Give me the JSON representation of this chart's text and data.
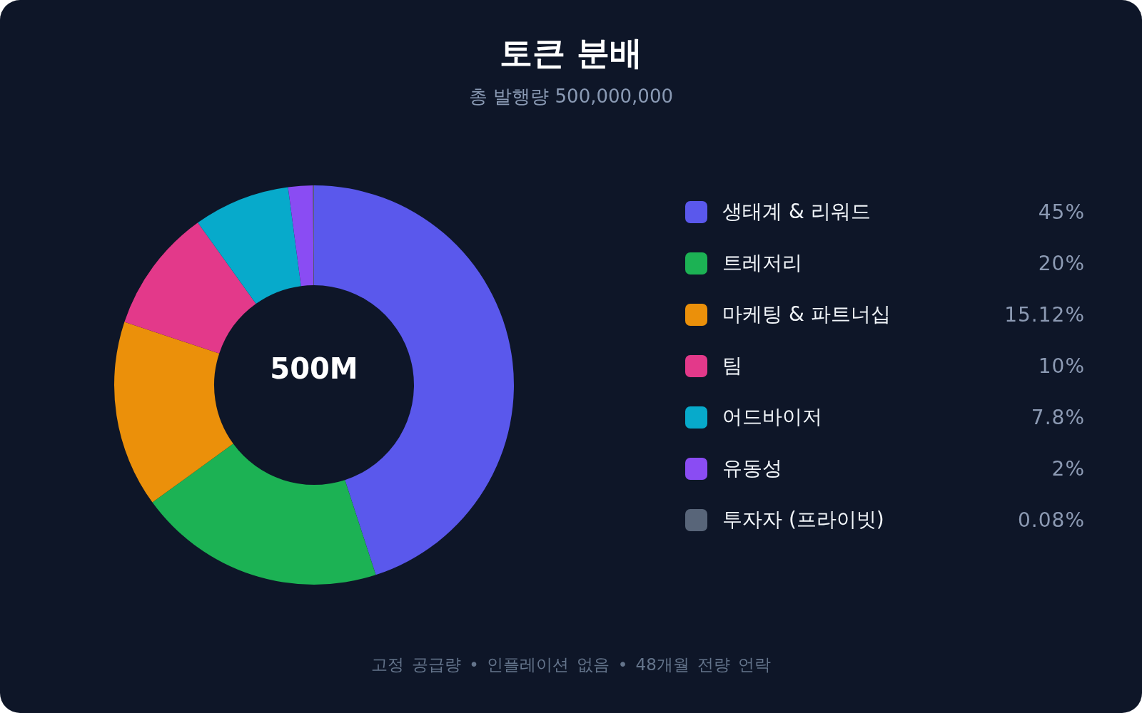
{
  "chart_data": {
    "type": "donut",
    "title": "토큰 분배",
    "subtitle": "총 발행량 500,000,000",
    "categories": [
      "생태계 & 리워드",
      "트레저리",
      "마케팅 & 파트너십",
      "팀",
      "어드바이저",
      "유동성",
      "투자자 (프라이빗)"
    ],
    "values": [
      45,
      20,
      15.12,
      10,
      7.8,
      2,
      0.08
    ],
    "colors": [
      "#5a58ec",
      "#1cb254",
      "#eb900a",
      "#e3398a",
      "#07aacb",
      "#8a4cf3",
      "#586579"
    ],
    "value_labels": [
      "45%",
      "20%",
      "15.12%",
      "10%",
      "7.8%",
      "2%",
      "0.08%"
    ],
    "legend": "right",
    "annotations": [
      "500M",
      "고정 공급량 • 인플레이션 없음 • 48개월 전량 언락"
    ]
  }
}
